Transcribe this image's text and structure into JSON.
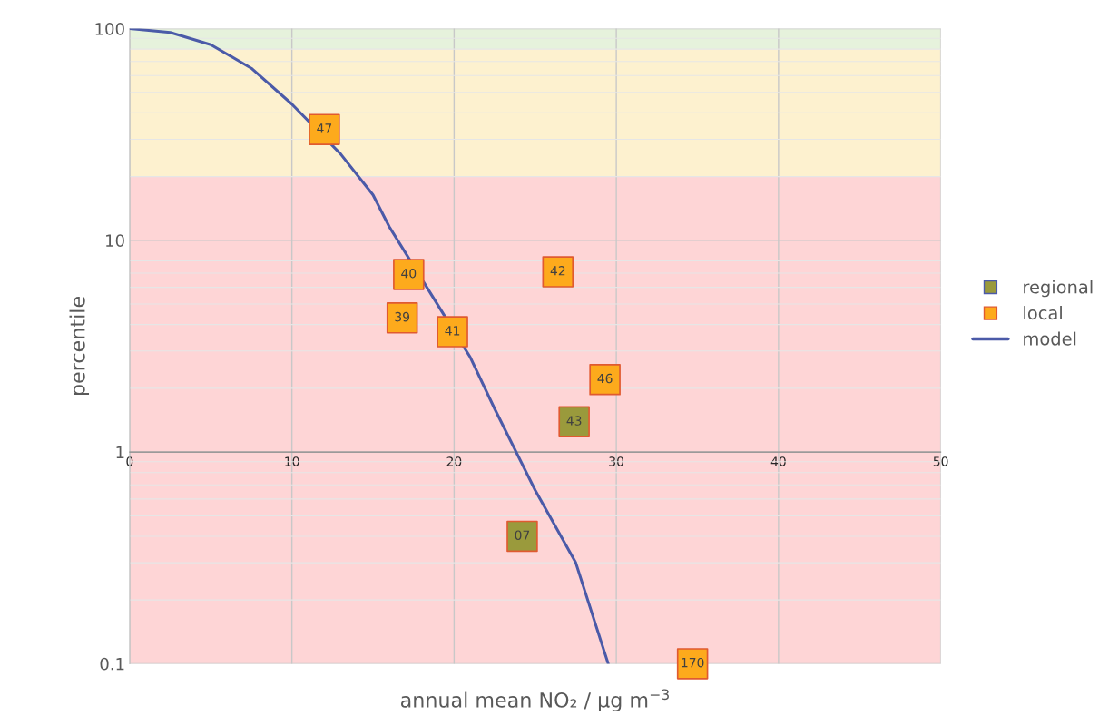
{
  "chart_data": {
    "type": "scatter",
    "xlabel": "annual mean NO₂ / µg m$^{−3}$",
    "ylabel": "percentile",
    "xlim": [
      0,
      50
    ],
    "xticks": [
      0,
      10,
      20,
      30,
      40,
      50
    ],
    "ylim": [
      0.1,
      100
    ],
    "yticks": [
      0.1,
      1,
      10,
      100
    ],
    "log": "y",
    "grid": true,
    "legend": "right",
    "bands": [
      {
        "axis": "y",
        "from": 80,
        "to": 100,
        "color": "#e6f2dc"
      },
      {
        "axis": "y",
        "from": 20,
        "to": 80,
        "color": "#fdf1cf"
      },
      {
        "axis": "y",
        "from": 0.1,
        "to": 20,
        "color": "#fed5d6"
      }
    ],
    "series": [
      {
        "name": "regional",
        "marker": "square",
        "color": "#9a9a3c",
        "x": [
          27.4,
          24.2
        ],
        "values": [
          1.39,
          0.4
        ]
      },
      {
        "name": "local",
        "marker": "square",
        "color": "#fdaa1c",
        "x": [
          12.0,
          17.2,
          16.8,
          19.9,
          26.4,
          29.3,
          34.7
        ],
        "values": [
          33.4,
          6.9,
          4.3,
          3.7,
          7.1,
          2.2,
          0.1
        ]
      },
      {
        "name": "model",
        "type": "line",
        "color": "#4b5aa8",
        "x": [
          0,
          2.5,
          5,
          7.5,
          10,
          13,
          15,
          16,
          21,
          22.5,
          25,
          27.5,
          29.5
        ],
        "values": [
          100,
          96,
          84,
          65,
          44,
          25.6,
          16.4,
          11.6,
          2.8,
          1.6,
          0.66,
          0.3,
          0.1
        ]
      }
    ],
    "annotations": [
      {
        "text": "43",
        "x": 27.4,
        "y": 1.39
      },
      {
        "text": "07",
        "x": 24.2,
        "y": 0.4
      },
      {
        "text": "47",
        "x": 12.0,
        "y": 33.4
      },
      {
        "text": "40",
        "x": 17.2,
        "y": 6.9
      },
      {
        "text": "39",
        "x": 16.8,
        "y": 4.3
      },
      {
        "text": "41",
        "x": 19.9,
        "y": 3.7
      },
      {
        "text": "42",
        "x": 26.4,
        "y": 7.1
      },
      {
        "text": "46",
        "x": 29.3,
        "y": 2.2
      },
      {
        "text": "170",
        "x": 34.7,
        "y": 0.1
      }
    ]
  }
}
